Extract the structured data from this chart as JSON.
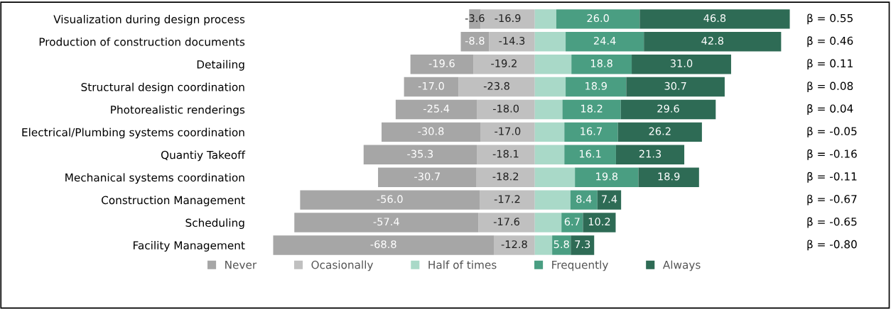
{
  "chart_data": {
    "type": "bar",
    "orientation": "horizontal",
    "stacked": true,
    "legend": "bottom",
    "categories": [
      "Visualization during design process",
      "Production of construction documents",
      "Detailing",
      "Structural design coordination",
      "Photorealistic renderings",
      "Electrical/Plumbing systems coordination",
      "Quantiy Takeoff",
      "Mechanical systems coordination",
      "Construction Management",
      "Scheduling",
      "Facility Management"
    ],
    "series": [
      {
        "name": "Never",
        "color": "#a6a6a6",
        "values": [
          -3.6,
          -8.8,
          -19.6,
          -17.0,
          -25.4,
          -30.8,
          -35.3,
          -30.7,
          -56.0,
          -57.4,
          -68.8
        ],
        "value_labels": [
          "-3.6",
          "-8.8",
          "-19.6",
          "-17.0",
          "-25.4",
          "-30.8",
          "-35.3",
          "-30.7",
          "-56.0",
          "-57.4",
          "-68.8"
        ]
      },
      {
        "name": "Ocasionally",
        "color": "#c0c0c0",
        "values": [
          -16.9,
          -14.3,
          -19.2,
          -23.8,
          -18.0,
          -17.0,
          -18.1,
          -18.2,
          -17.2,
          -17.6,
          -12.8
        ],
        "value_labels": [
          "-16.9",
          "-14.3",
          "-19.2",
          "-23.8",
          "-18.0",
          "-17.0",
          "-18.1",
          "-18.2",
          "-17.2",
          "-17.6",
          "-12.8"
        ]
      },
      {
        "name": "Half of times",
        "color": "#a9d9c8",
        "values": [
          6.7,
          9.6,
          11.4,
          9.6,
          8.6,
          9.2,
          9.2,
          12.5,
          11.1,
          8.3,
          5.4
        ]
      },
      {
        "name": "Frequently",
        "color": "#4a9e82",
        "values": [
          26.0,
          24.4,
          18.8,
          18.9,
          18.2,
          16.7,
          16.1,
          19.8,
          8.4,
          6.7,
          5.8
        ],
        "value_labels": [
          "26.0",
          "24.4",
          "18.8",
          "18.9",
          "18.2",
          "16.7",
          "16.1",
          "19.8",
          "8.4",
          "6.7",
          "5.8"
        ]
      },
      {
        "name": "Always",
        "color": "#2e6b55",
        "values": [
          46.8,
          42.8,
          31.0,
          30.7,
          29.6,
          26.2,
          21.3,
          18.9,
          7.4,
          10.2,
          7.3
        ],
        "value_labels": [
          "46.8",
          "42.8",
          "31.0",
          "30.7",
          "29.6",
          "26.2",
          "21.3",
          "18.9",
          "7.4",
          "10.2",
          "7.3"
        ]
      }
    ],
    "annotations": [
      "β = 0.55",
      "β = 0.46",
      "β = 0.11",
      "β = 0.08",
      "β = 0.04",
      "β = -0.05",
      "β = -0.16",
      "β = -0.11",
      "β = -0.67",
      "β = -0.65",
      "β = -0.80"
    ]
  }
}
